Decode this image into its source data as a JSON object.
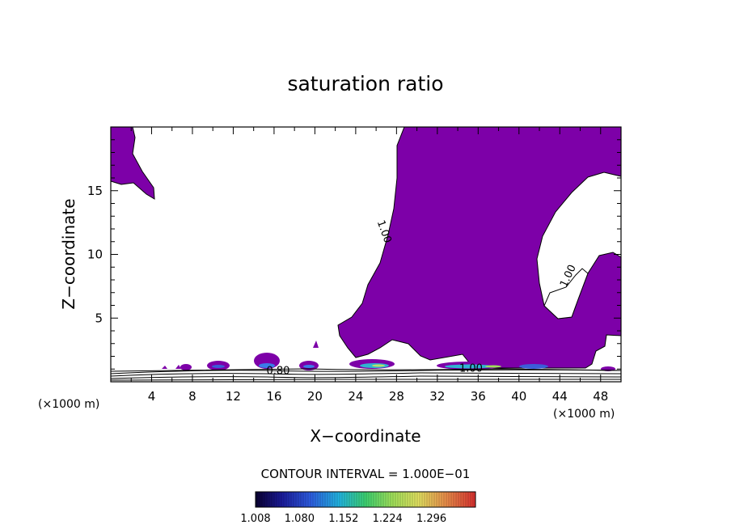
{
  "chart_data": {
    "type": "contour",
    "title": "saturation ratio",
    "xlabel": "X−coordinate",
    "ylabel": "Z−coordinate",
    "x_unit_left": "(×1000 m)",
    "x_unit_right": "(×1000 m)",
    "xlim": [
      0,
      50
    ],
    "ylim": [
      0,
      20
    ],
    "x_ticks": [
      4,
      8,
      12,
      16,
      20,
      24,
      28,
      32,
      36,
      40,
      44,
      48
    ],
    "y_ticks": [
      5,
      10,
      15
    ],
    "contour_interval_text": "CONTOUR INTERVAL = 1.000E−01",
    "contour_labels": [
      {
        "text": "1.00",
        "x": 26.5,
        "y": 11.7
      },
      {
        "text": "1.00",
        "x": 45.1,
        "y": 8.2
      },
      {
        "text": "0.80",
        "x": 16.4,
        "y": 0.6
      },
      {
        "text": "1.00",
        "x": 35.3,
        "y": 0.8
      }
    ],
    "colorbar": {
      "tick_labels": [
        "1.008",
        "1.080",
        "1.152",
        "1.224",
        "1.296"
      ],
      "min": 1.008,
      "max": 1.296
    },
    "fill_color": "#7d00a8",
    "saturated_regions_note": ""
  }
}
